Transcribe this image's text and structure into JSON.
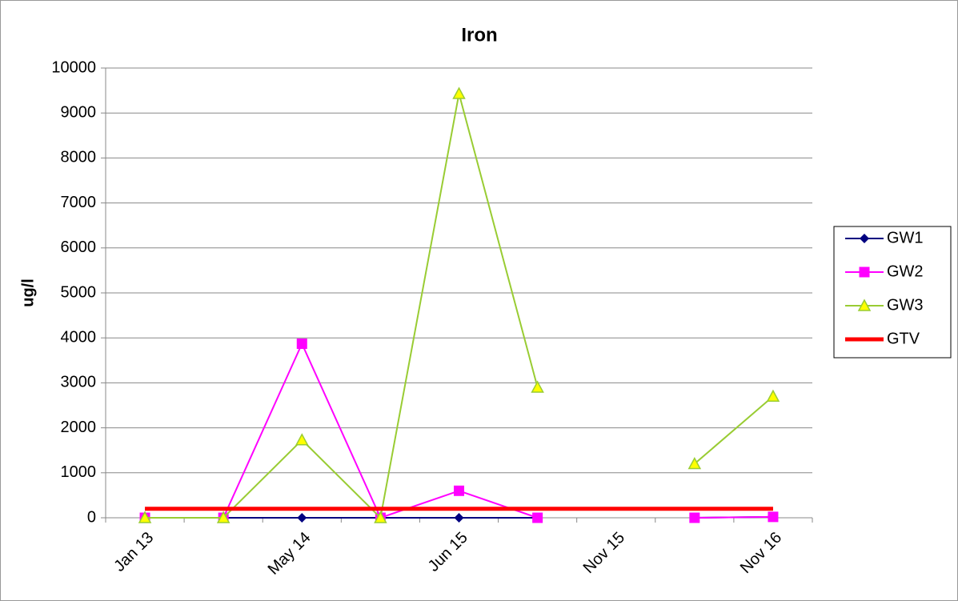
{
  "chart_data": {
    "type": "line",
    "title": "Iron",
    "y_label": "ug/l",
    "categories": [
      "Jan 13",
      null,
      "May 14",
      null,
      "Jun 15",
      null,
      "Nov 15",
      null,
      "Nov 16"
    ],
    "series": [
      {
        "name": "GW1",
        "color": "#000080",
        "marker": "diamond",
        "values": [
          0,
          0,
          0,
          0,
          0,
          0,
          null,
          0,
          20
        ]
      },
      {
        "name": "GW2",
        "color": "#ff00ff",
        "marker": "square",
        "values": [
          0,
          0,
          3870,
          0,
          600,
          0,
          null,
          0,
          20
        ]
      },
      {
        "name": "GW3",
        "color": "#99cc33",
        "marker": "triangle",
        "values": [
          0,
          0,
          1730,
          0,
          9430,
          2900,
          null,
          1200,
          2700
        ]
      },
      {
        "name": "GTV",
        "color": "#ff0000",
        "marker": "none",
        "values": [
          200,
          200,
          200,
          200,
          200,
          200,
          200,
          200,
          200
        ]
      }
    ],
    "ylim": [
      0,
      10000
    ],
    "yticks": [
      0,
      1000,
      2000,
      3000,
      4000,
      5000,
      6000,
      7000,
      8000,
      9000,
      10000
    ],
    "grid": true,
    "legend": "right"
  }
}
